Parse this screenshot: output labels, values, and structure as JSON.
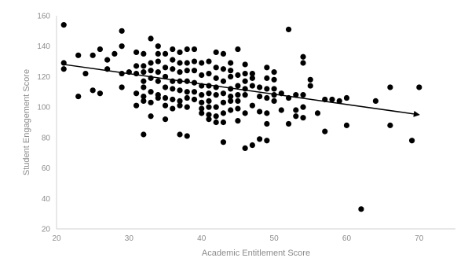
{
  "chart_data": {
    "type": "scatter",
    "title": "",
    "xlabel": "Academic Entitlement Score",
    "ylabel": "Student Engagement Score",
    "xlim": [
      20,
      75
    ],
    "ylim": [
      20,
      160
    ],
    "xticks": [
      20,
      30,
      40,
      50,
      60,
      70
    ],
    "yticks": [
      20,
      40,
      60,
      80,
      100,
      120,
      140,
      160
    ],
    "grid": false,
    "marker_color": "#000000",
    "axis_color": "#d0d0d0",
    "trendline": {
      "type": "linear",
      "from": [
        21,
        128
      ],
      "to": [
        70,
        95
      ],
      "arrow": true
    },
    "points": [
      [
        21,
        154
      ],
      [
        21,
        129
      ],
      [
        21,
        125
      ],
      [
        23,
        134
      ],
      [
        23,
        107
      ],
      [
        24,
        122
      ],
      [
        25,
        134
      ],
      [
        25,
        111
      ],
      [
        26,
        138
      ],
      [
        26,
        109
      ],
      [
        27,
        131
      ],
      [
        27,
        125
      ],
      [
        28,
        135
      ],
      [
        29,
        150
      ],
      [
        29,
        140
      ],
      [
        29,
        122
      ],
      [
        29,
        113
      ],
      [
        30,
        123
      ],
      [
        31,
        136
      ],
      [
        31,
        127
      ],
      [
        31,
        122
      ],
      [
        31,
        109
      ],
      [
        31,
        101
      ],
      [
        32,
        135
      ],
      [
        32,
        127
      ],
      [
        32,
        123
      ],
      [
        32,
        117
      ],
      [
        32,
        113
      ],
      [
        32,
        107
      ],
      [
        32,
        104
      ],
      [
        32,
        82
      ],
      [
        33,
        145
      ],
      [
        33,
        129
      ],
      [
        33,
        124
      ],
      [
        33,
        119
      ],
      [
        33,
        110
      ],
      [
        33,
        103
      ],
      [
        33,
        94
      ],
      [
        34,
        140
      ],
      [
        34,
        135
      ],
      [
        34,
        130
      ],
      [
        34,
        123
      ],
      [
        34,
        117
      ],
      [
        34,
        108
      ],
      [
        34,
        106
      ],
      [
        35,
        135
      ],
      [
        35,
        126
      ],
      [
        35,
        120
      ],
      [
        35,
        113
      ],
      [
        35,
        106
      ],
      [
        35,
        101
      ],
      [
        35,
        92
      ],
      [
        36,
        138
      ],
      [
        36,
        131
      ],
      [
        36,
        125
      ],
      [
        36,
        117
      ],
      [
        36,
        112
      ],
      [
        36,
        105
      ],
      [
        36,
        99
      ],
      [
        37,
        136
      ],
      [
        37,
        129
      ],
      [
        37,
        123
      ],
      [
        37,
        117
      ],
      [
        37,
        111
      ],
      [
        37,
        104
      ],
      [
        37,
        101
      ],
      [
        37,
        82
      ],
      [
        38,
        138
      ],
      [
        38,
        129
      ],
      [
        38,
        124
      ],
      [
        38,
        117
      ],
      [
        38,
        110
      ],
      [
        38,
        106
      ],
      [
        38,
        100
      ],
      [
        38,
        81
      ],
      [
        39,
        138
      ],
      [
        39,
        130
      ],
      [
        39,
        124
      ],
      [
        39,
        116
      ],
      [
        39,
        110
      ],
      [
        39,
        105
      ],
      [
        40,
        129
      ],
      [
        40,
        121
      ],
      [
        40,
        114
      ],
      [
        40,
        108
      ],
      [
        40,
        103
      ],
      [
        40,
        99
      ],
      [
        40,
        96
      ],
      [
        41,
        130
      ],
      [
        41,
        122
      ],
      [
        41,
        114
      ],
      [
        41,
        109
      ],
      [
        41,
        104
      ],
      [
        41,
        100
      ],
      [
        41,
        95
      ],
      [
        41,
        92
      ],
      [
        42,
        136
      ],
      [
        42,
        126
      ],
      [
        42,
        119
      ],
      [
        42,
        113
      ],
      [
        42,
        108
      ],
      [
        42,
        100
      ],
      [
        42,
        94
      ],
      [
        42,
        90
      ],
      [
        43,
        135
      ],
      [
        43,
        125
      ],
      [
        43,
        117
      ],
      [
        43,
        109
      ],
      [
        43,
        103
      ],
      [
        43,
        96
      ],
      [
        43,
        90
      ],
      [
        43,
        77
      ],
      [
        44,
        129
      ],
      [
        44,
        124
      ],
      [
        44,
        120
      ],
      [
        44,
        112
      ],
      [
        44,
        107
      ],
      [
        44,
        104
      ],
      [
        44,
        98
      ],
      [
        45,
        138
      ],
      [
        45,
        121
      ],
      [
        45,
        114
      ],
      [
        45,
        108
      ],
      [
        45,
        104
      ],
      [
        45,
        99
      ],
      [
        45,
        91
      ],
      [
        46,
        128
      ],
      [
        46,
        122
      ],
      [
        46,
        117
      ],
      [
        46,
        112
      ],
      [
        46,
        108
      ],
      [
        46,
        96
      ],
      [
        46,
        73
      ],
      [
        47,
        122
      ],
      [
        47,
        119
      ],
      [
        47,
        114
      ],
      [
        47,
        101
      ],
      [
        47,
        75
      ],
      [
        48,
        113
      ],
      [
        48,
        107
      ],
      [
        48,
        97
      ],
      [
        48,
        79
      ],
      [
        49,
        126
      ],
      [
        49,
        119
      ],
      [
        49,
        112
      ],
      [
        49,
        106
      ],
      [
        49,
        96
      ],
      [
        49,
        89
      ],
      [
        49,
        78
      ],
      [
        50,
        123
      ],
      [
        50,
        118
      ],
      [
        50,
        112
      ],
      [
        50,
        108
      ],
      [
        50,
        104
      ],
      [
        51,
        109
      ],
      [
        51,
        98
      ],
      [
        52,
        151
      ],
      [
        52,
        106
      ],
      [
        52,
        89
      ],
      [
        53,
        108
      ],
      [
        53,
        98
      ],
      [
        53,
        94
      ],
      [
        54,
        133
      ],
      [
        54,
        129
      ],
      [
        54,
        108
      ],
      [
        54,
        100
      ],
      [
        54,
        93
      ],
      [
        55,
        118
      ],
      [
        55,
        114
      ],
      [
        56,
        96
      ],
      [
        57,
        105
      ],
      [
        57,
        84
      ],
      [
        58,
        105
      ],
      [
        59,
        104
      ],
      [
        60,
        106
      ],
      [
        60,
        88
      ],
      [
        62,
        33
      ],
      [
        64,
        104
      ],
      [
        66,
        113
      ],
      [
        66,
        88
      ],
      [
        69,
        78
      ],
      [
        70,
        113
      ]
    ]
  }
}
